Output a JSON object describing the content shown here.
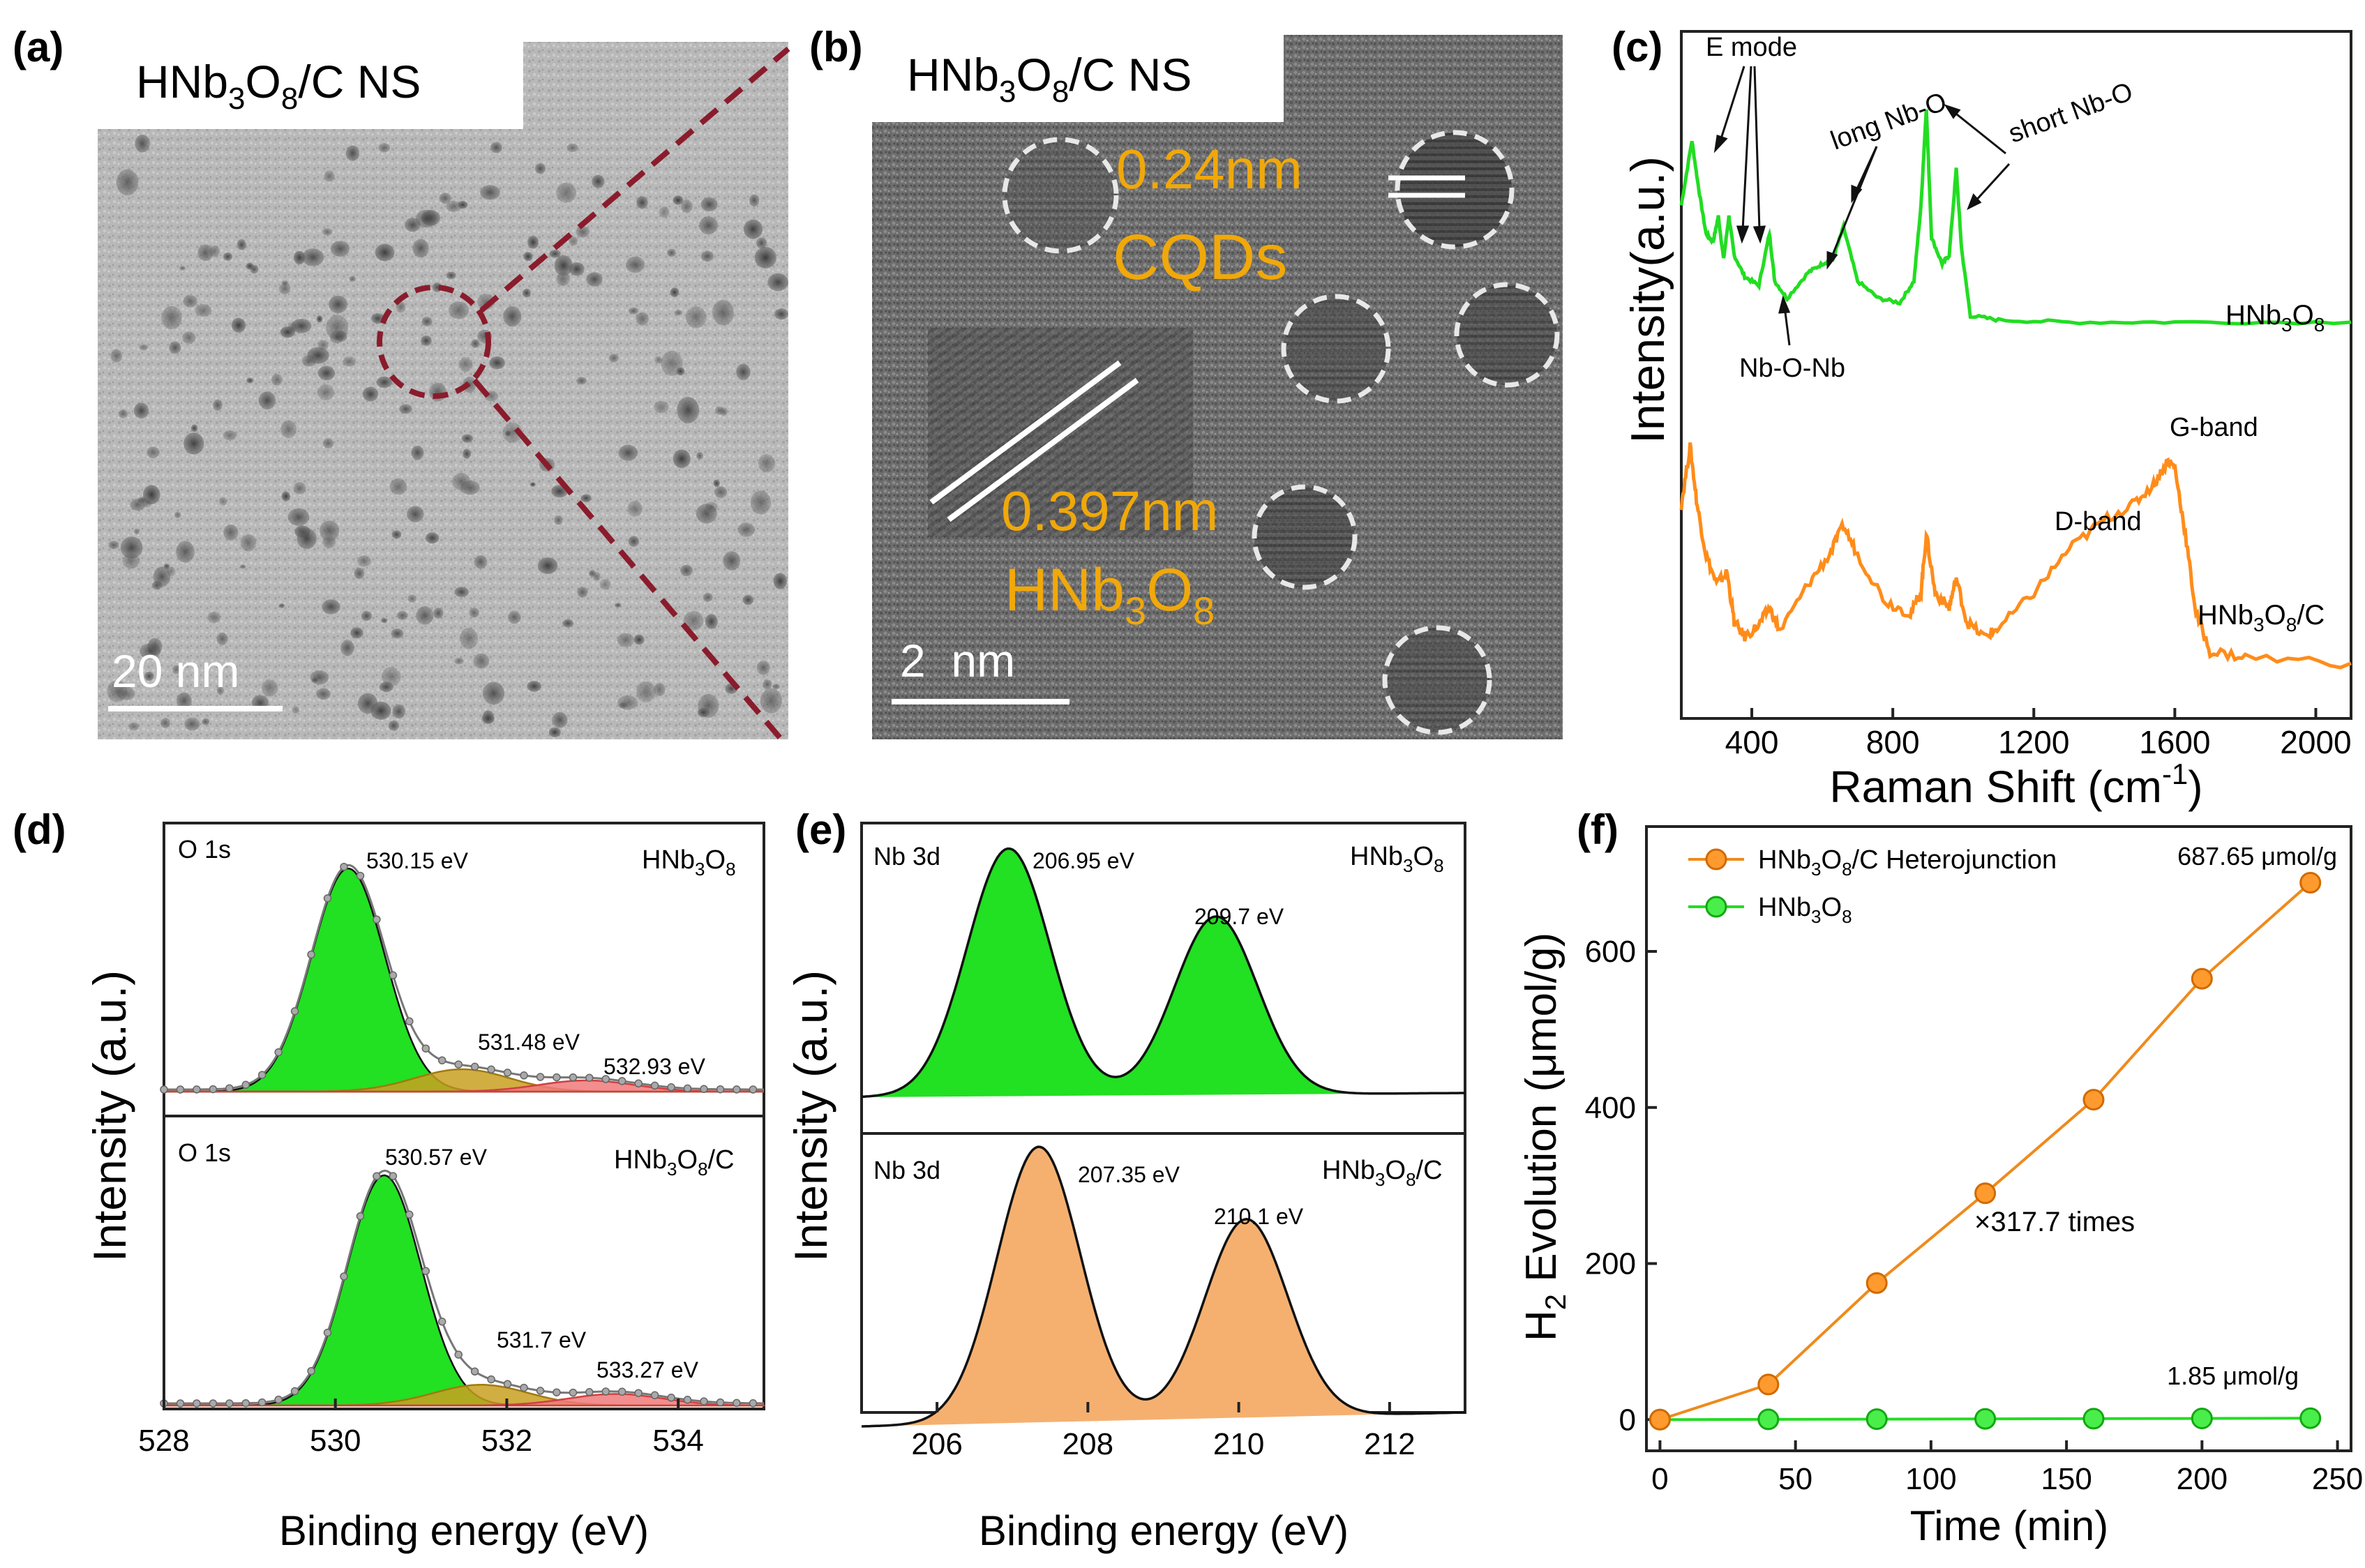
{
  "colors": {
    "green": "#22dd22",
    "orange": "#ff8c1a",
    "orange_fill": "#f5b070",
    "maroon": "#8a1c2c",
    "label_gold": "#f0a80a"
  },
  "panel_a": {
    "label": "(a)",
    "caption_pre": "HNb",
    "caption_sub1": "3",
    "caption_mid": "O",
    "caption_sub2": "8",
    "caption_post": "/C NS",
    "scalebar": "20 nm"
  },
  "panel_b": {
    "label": "(b)",
    "caption_pre": "HNb",
    "caption_sub1": "3",
    "caption_mid": "O",
    "caption_sub2": "8",
    "caption_post": "/C NS",
    "spacing_cqd": "0.24nm",
    "cqd_label": "CQDs",
    "spacing_hnb": "0.397nm",
    "hnb_pre": "HNb",
    "hnb_sub1": "3",
    "hnb_mid": "O",
    "hnb_sub2": "8",
    "scalebar": "2  nm"
  },
  "panel_c": {
    "label": "(c)",
    "ylabel": "Intensity(a.u.)",
    "xlabel_main": "Raman Shift (cm",
    "xlabel_sup": "-1",
    "xlabel_end": ")",
    "xticks": [
      "400",
      "800",
      "1200",
      "1600",
      "2000"
    ],
    "annotations": {
      "e_mode": "E mode",
      "long_nbo": "long Nb-O",
      "short_nbo": "short Nb-O",
      "nbonb": "Nb-O-Nb",
      "g_band": "G-band",
      "d_band": "D-band"
    },
    "series_top_label_pre": "HNb",
    "series_top_sub1": "3",
    "series_top_mid": "O",
    "series_top_sub2": "8",
    "series_bot_label_pre": "HNb",
    "series_bot_sub1": "3",
    "series_bot_mid": "O",
    "series_bot_sub2": "8",
    "series_bot_post": "/C"
  },
  "panel_d": {
    "label": "(d)",
    "ylabel": "Intensity (a.u.)",
    "xlabel": "Binding energy (eV)",
    "xticks": [
      "528",
      "530",
      "532",
      "534"
    ],
    "top": {
      "core": "O 1s",
      "sample_pre": "HNb",
      "sample_sub1": "3",
      "sample_mid": "O",
      "sample_sub2": "8",
      "sample_post": "",
      "peak1": "530.15 eV",
      "peak2": "531.48 eV",
      "peak3": "532.93 eV"
    },
    "bottom": {
      "core": "O 1s",
      "sample_pre": "HNb",
      "sample_sub1": "3",
      "sample_mid": "O",
      "sample_sub2": "8",
      "sample_post": "/C",
      "peak1": "530.57 eV",
      "peak2": "531.7 eV",
      "peak3": "533.27 eV"
    }
  },
  "panel_e": {
    "label": "(e)",
    "ylabel": "Intensity (a.u.)",
    "xlabel": "Binding energy (eV)",
    "xticks": [
      "206",
      "208",
      "210",
      "212"
    ],
    "top": {
      "core": "Nb 3d",
      "sample_pre": "HNb",
      "sample_sub1": "3",
      "sample_mid": "O",
      "sample_sub2": "8",
      "sample_post": "",
      "peak1": "206.95 eV",
      "peak2": "209.7 eV"
    },
    "bottom": {
      "core": "Nb 3d",
      "sample_pre": "HNb",
      "sample_sub1": "3",
      "sample_mid": "O",
      "sample_sub2": "8",
      "sample_post": "/C",
      "peak1": "207.35 eV",
      "peak2": "210.1 eV"
    }
  },
  "panel_f": {
    "label": "(f)",
    "ylabel_pre": "H",
    "ylabel_sub": "2",
    "ylabel_post": " Evolution (μmol/g)",
    "xlabel": "Time (min)",
    "xticks": [
      "0",
      "50",
      "100",
      "150",
      "200",
      "250"
    ],
    "yticks": [
      "0",
      "200",
      "400",
      "600"
    ],
    "legend1_pre": "HNb",
    "legend1_sub1": "3",
    "legend1_mid": "O",
    "legend1_sub2": "8",
    "legend1_post": "/C Heterojunction",
    "legend2_pre": "HNb",
    "legend2_sub1": "3",
    "legend2_mid": "O",
    "legend2_sub2": "8",
    "legend2_post": "",
    "ann_top": "687.65 μmol/g",
    "ann_mid": "×317.7 times",
    "ann_bottom": "1.85 μmol/g"
  },
  "chart_data": [
    {
      "type": "line",
      "panel": "c",
      "title": "",
      "xlabel": "Raman Shift (cm-1)",
      "ylabel": "Intensity(a.u.)",
      "xlim": [
        200,
        2100
      ],
      "series": [
        {
          "name": "HNb3O8",
          "x": [
            200,
            230,
            250,
            270,
            290,
            305,
            320,
            335,
            350,
            380,
            420,
            450,
            465,
            500,
            560,
            600,
            630,
            660,
            700,
            760,
            820,
            860,
            880,
            895,
            910,
            940,
            960,
            980,
            995,
            1020,
            1100,
            1300,
            1600,
            2100
          ],
          "y": [
            0.55,
            0.85,
            0.62,
            0.42,
            0.38,
            0.5,
            0.3,
            0.5,
            0.32,
            0.22,
            0.18,
            0.42,
            0.2,
            0.12,
            0.24,
            0.28,
            0.3,
            0.45,
            0.2,
            0.12,
            0.1,
            0.2,
            0.55,
            1.0,
            0.4,
            0.28,
            0.32,
            0.72,
            0.35,
            0.04,
            0.02,
            0.01,
            0.01,
            0.01
          ]
        },
        {
          "name": "HNb3O8/C",
          "x": [
            200,
            225,
            245,
            270,
            300,
            330,
            350,
            380,
            420,
            450,
            480,
            560,
            620,
            660,
            700,
            780,
            850,
            880,
            895,
            920,
            960,
            980,
            1010,
            1060,
            1100,
            1200,
            1300,
            1400,
            1480,
            1540,
            1580,
            1600,
            1630,
            1660,
            1700,
            1800,
            2100
          ],
          "y": [
            0.55,
            0.75,
            0.55,
            0.38,
            0.28,
            0.32,
            0.15,
            0.1,
            0.14,
            0.2,
            0.12,
            0.28,
            0.38,
            0.48,
            0.38,
            0.22,
            0.18,
            0.25,
            0.45,
            0.25,
            0.2,
            0.3,
            0.15,
            0.1,
            0.13,
            0.25,
            0.4,
            0.5,
            0.55,
            0.62,
            0.7,
            0.68,
            0.45,
            0.18,
            0.05,
            0.03,
            0.01
          ]
        }
      ]
    },
    {
      "type": "area",
      "panel": "d",
      "xlabel": "Binding energy (eV)",
      "ylabel": "Intensity (a.u.)",
      "xlim": [
        528,
        535
      ],
      "series": [
        {
          "name": "HNb3O8",
          "peaks_eV": [
            530.15,
            531.48,
            532.93
          ],
          "relative_heights": [
            1.0,
            0.1,
            0.05
          ]
        },
        {
          "name": "HNb3O8/C",
          "peaks_eV": [
            530.57,
            531.7,
            533.27
          ],
          "relative_heights": [
            1.0,
            0.09,
            0.05
          ]
        }
      ]
    },
    {
      "type": "area",
      "panel": "e",
      "xlabel": "Binding energy (eV)",
      "ylabel": "Intensity (a.u.)",
      "xlim": [
        205,
        213
      ],
      "series": [
        {
          "name": "HNb3O8",
          "peaks_eV": [
            206.95,
            209.7
          ],
          "relative_heights": [
            1.0,
            0.72
          ]
        },
        {
          "name": "HNb3O8/C",
          "peaks_eV": [
            207.35,
            210.1
          ],
          "relative_heights": [
            1.0,
            0.72
          ]
        }
      ]
    },
    {
      "type": "line",
      "panel": "f",
      "xlabel": "Time (min)",
      "ylabel": "H2 Evolution (μmol/g)",
      "xlim": [
        -5,
        255
      ],
      "ylim": [
        -40,
        760
      ],
      "x": [
        0,
        40,
        80,
        120,
        160,
        200,
        240
      ],
      "series": [
        {
          "name": "HNb3O8/C Heterojunction",
          "values": [
            0,
            45,
            175,
            290,
            410,
            565,
            688
          ]
        },
        {
          "name": "HNb3O8",
          "values": [
            0,
            0.3,
            0.6,
            0.9,
            1.2,
            1.5,
            1.85
          ]
        }
      ]
    }
  ]
}
